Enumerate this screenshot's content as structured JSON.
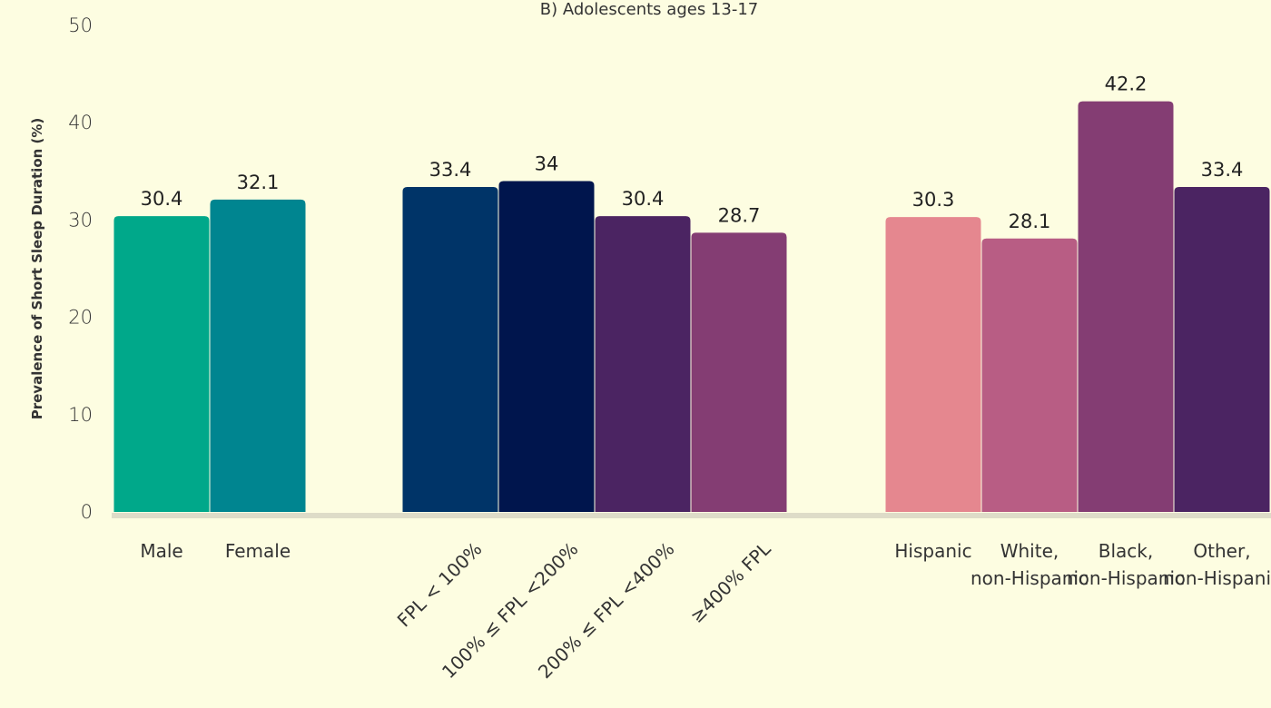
{
  "chart_data": {
    "type": "bar",
    "title": "B) Adolescents ages 13-17",
    "ylabel": "Prevalence of Short Sleep Duration (%)",
    "ylim": [
      0,
      50
    ],
    "yticks": [
      0,
      10,
      20,
      30,
      40,
      50
    ],
    "grid": false,
    "groups": [
      {
        "categories": [
          "Male",
          "Female"
        ],
        "values": [
          30.4,
          32.1
        ],
        "colors": [
          "#00a88a",
          "#008590"
        ]
      },
      {
        "categories": [
          "FPL < 100%",
          "100% ≤ FPL <200%",
          "200% ≤ FPL <400%",
          "≥400% FPL"
        ],
        "values": [
          33.4,
          34,
          30.4,
          28.7
        ],
        "colors": [
          "#003468",
          "#00154d",
          "#4b2462",
          "#843d73"
        ]
      },
      {
        "categories": [
          "Hispanic",
          "White, non-Hispanic",
          "Black, non-Hispanic",
          "Other, non-Hispanic"
        ],
        "values": [
          30.3,
          28.1,
          42.2,
          33.4
        ],
        "colors": [
          "#e5878f",
          "#b85d84",
          "#843d73",
          "#4b2462"
        ]
      }
    ]
  }
}
